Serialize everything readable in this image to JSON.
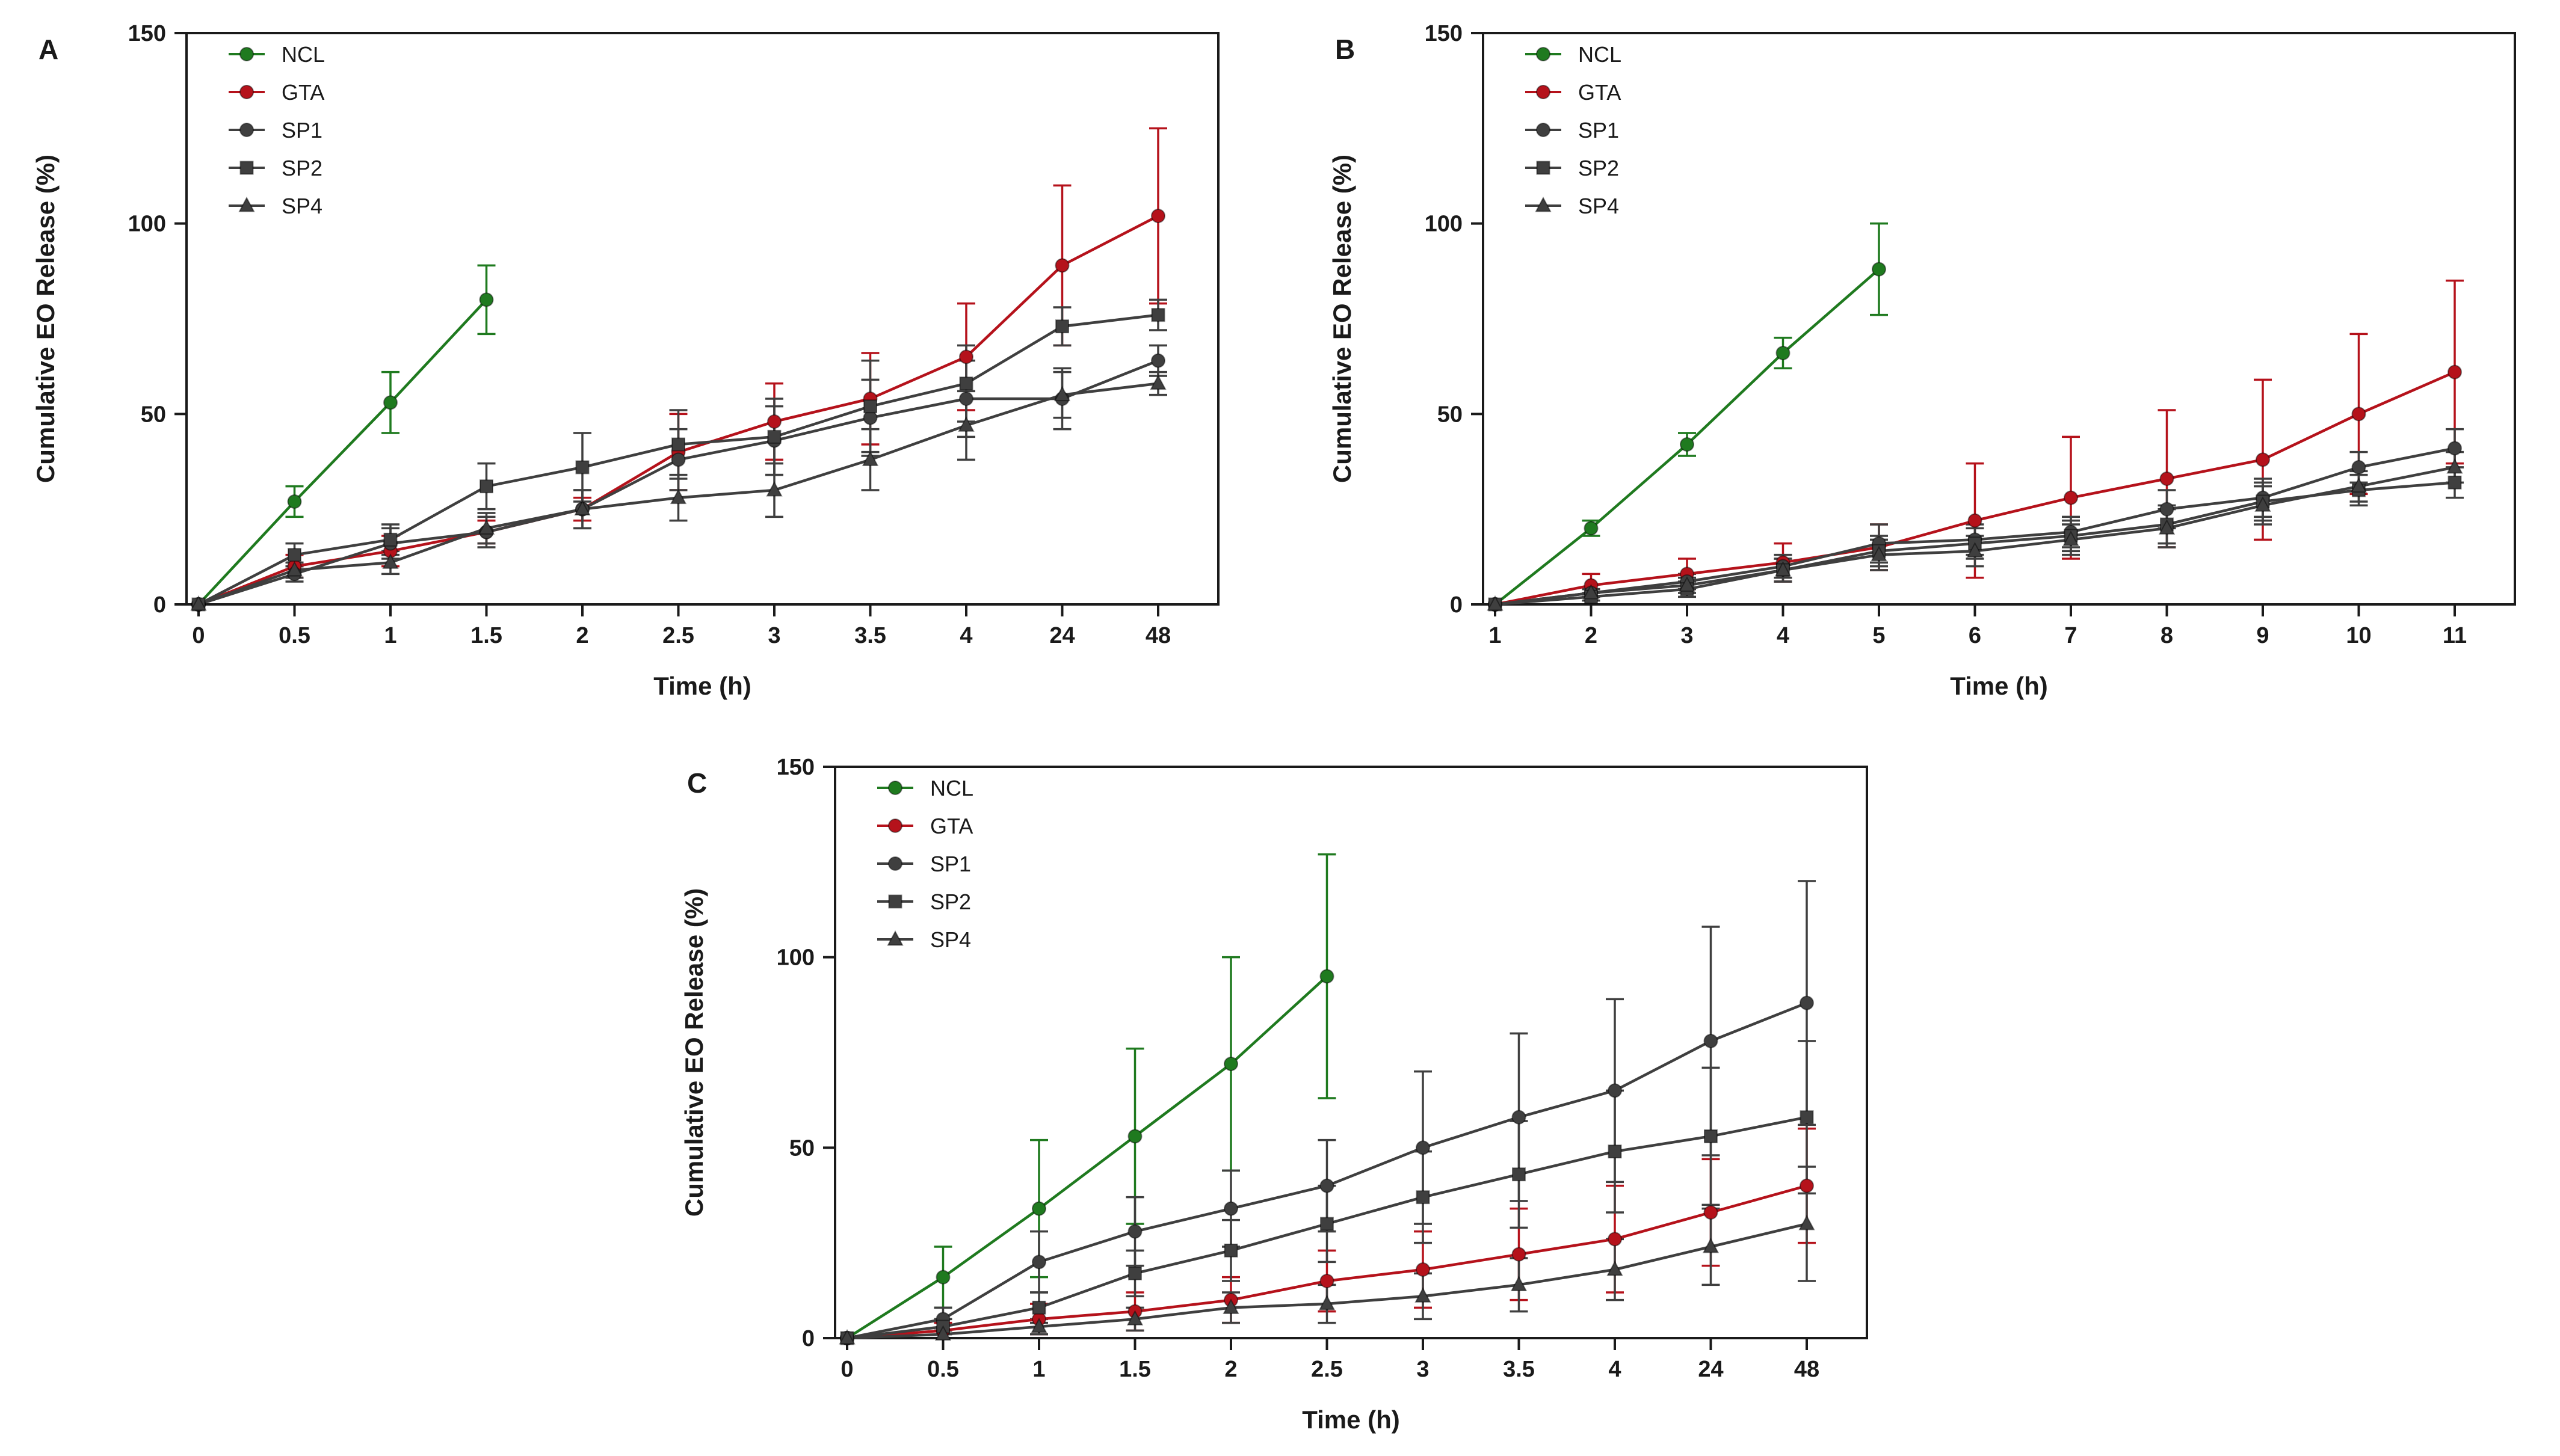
{
  "page": {
    "background": "#ffffff",
    "text_color": "#1a1a1a"
  },
  "legend_order": [
    "NCL",
    "GTA",
    "SP1",
    "SP2",
    "SP4"
  ],
  "colors": {
    "NCL": "#1f7a1f",
    "GTA": "#b5121b",
    "SP1": "#3f3f3f",
    "SP2": "#3f3f3f",
    "SP4": "#3f3f3f"
  },
  "chart_data": [
    {
      "type": "line",
      "panel_label": "A",
      "title": "",
      "xlabel": "Time (h)",
      "ylabel": "Cumulative EO Release (%)",
      "ylim": [
        0,
        150
      ],
      "yticks": [
        0,
        50,
        100,
        150
      ],
      "grid": false,
      "frame": true,
      "legend_position": "top-left-inside",
      "categories": [
        "0",
        "0.5",
        "1",
        "1.5",
        "2",
        "2.5",
        "3",
        "3.5",
        "4",
        "24",
        "48"
      ],
      "series": [
        {
          "name": "NCL",
          "color": "#1f7a1f",
          "marker": "circle",
          "values": [
            0,
            27,
            53,
            80
          ],
          "errors": [
            0,
            4,
            8,
            9
          ]
        },
        {
          "name": "GTA",
          "color": "#b5121b",
          "marker": "circle",
          "values": [
            0,
            10,
            14,
            19,
            25,
            40,
            48,
            54,
            65,
            89,
            102
          ],
          "errors": [
            0,
            3,
            4,
            3,
            3,
            10,
            10,
            12,
            14,
            21,
            23
          ]
        },
        {
          "name": "SP1",
          "color": "#3f3f3f",
          "marker": "circle",
          "values": [
            0,
            8,
            16,
            19,
            25,
            38,
            43,
            49,
            54,
            54,
            64
          ],
          "errors": [
            0,
            2,
            4,
            4,
            5,
            8,
            9,
            10,
            10,
            8,
            4
          ]
        },
        {
          "name": "SP2",
          "color": "#3f3f3f",
          "marker": "square",
          "values": [
            0,
            13,
            17,
            31,
            36,
            42,
            44,
            52,
            58,
            73,
            76
          ],
          "errors": [
            0,
            3,
            4,
            6,
            9,
            9,
            10,
            12,
            10,
            5,
            4
          ]
        },
        {
          "name": "SP4",
          "color": "#3f3f3f",
          "marker": "triangle",
          "values": [
            0,
            9,
            11,
            20,
            25,
            28,
            30,
            38,
            47,
            55,
            58
          ],
          "errors": [
            0,
            2,
            3,
            4,
            5,
            6,
            7,
            8,
            9,
            6,
            3
          ]
        }
      ]
    },
    {
      "type": "line",
      "panel_label": "B",
      "title": "",
      "xlabel": "Time (h)",
      "ylabel": "Cumulative EO Release (%)",
      "ylim": [
        0,
        150
      ],
      "yticks": [
        0,
        50,
        100,
        150
      ],
      "grid": false,
      "frame": true,
      "legend_position": "top-left-inside",
      "categories": [
        "1",
        "2",
        "3",
        "4",
        "5",
        "6",
        "7",
        "8",
        "9",
        "10",
        "11"
      ],
      "series": [
        {
          "name": "NCL",
          "color": "#1f7a1f",
          "marker": "circle",
          "values": [
            0,
            20,
            42,
            66,
            88
          ],
          "errors": [
            0,
            2,
            3,
            4,
            12
          ]
        },
        {
          "name": "GTA",
          "color": "#b5121b",
          "marker": "circle",
          "values": [
            0,
            5,
            8,
            11,
            15,
            22,
            28,
            33,
            38,
            50,
            61
          ],
          "errors": [
            0,
            3,
            4,
            5,
            6,
            15,
            16,
            18,
            21,
            21,
            24
          ]
        },
        {
          "name": "SP1",
          "color": "#3f3f3f",
          "marker": "circle",
          "values": [
            0,
            3,
            6,
            10,
            16,
            17,
            19,
            25,
            28,
            36,
            41
          ],
          "errors": [
            0,
            1,
            2,
            3,
            5,
            4,
            4,
            5,
            5,
            4,
            5
          ]
        },
        {
          "name": "SP2",
          "color": "#3f3f3f",
          "marker": "square",
          "values": [
            0,
            2,
            4,
            9,
            14,
            16,
            18,
            21,
            27,
            30,
            32
          ],
          "errors": [
            0,
            1,
            2,
            3,
            4,
            4,
            4,
            5,
            5,
            4,
            4
          ]
        },
        {
          "name": "SP4",
          "color": "#3f3f3f",
          "marker": "triangle",
          "values": [
            0,
            3,
            5,
            9,
            13,
            14,
            17,
            20,
            26,
            31,
            36
          ],
          "errors": [
            0,
            1,
            2,
            3,
            4,
            4,
            4,
            5,
            5,
            4,
            4
          ]
        }
      ]
    },
    {
      "type": "line",
      "panel_label": "C",
      "title": "",
      "xlabel": "Time (h)",
      "ylabel": "Cumulative EO Release (%)",
      "ylim": [
        0,
        150
      ],
      "yticks": [
        0,
        50,
        100,
        150
      ],
      "grid": false,
      "frame": true,
      "legend_position": "top-left-inside",
      "categories": [
        "0",
        "0.5",
        "1",
        "1.5",
        "2",
        "2.5",
        "3",
        "3.5",
        "4",
        "24",
        "48"
      ],
      "series": [
        {
          "name": "NCL",
          "color": "#1f7a1f",
          "marker": "circle",
          "values": [
            0,
            16,
            34,
            53,
            72,
            95
          ],
          "errors": [
            0,
            8,
            18,
            23,
            28,
            32
          ]
        },
        {
          "name": "GTA",
          "color": "#b5121b",
          "marker": "circle",
          "values": [
            0,
            2,
            5,
            7,
            10,
            15,
            18,
            22,
            26,
            33,
            40
          ],
          "errors": [
            0,
            2,
            4,
            5,
            6,
            8,
            10,
            12,
            14,
            14,
            15
          ]
        },
        {
          "name": "SP1",
          "color": "#3f3f3f",
          "marker": "circle",
          "values": [
            0,
            5,
            20,
            28,
            34,
            40,
            50,
            58,
            65,
            78,
            88
          ],
          "errors": [
            0,
            3,
            8,
            9,
            10,
            12,
            20,
            22,
            24,
            30,
            32
          ]
        },
        {
          "name": "SP2",
          "color": "#3f3f3f",
          "marker": "square",
          "values": [
            0,
            3,
            8,
            17,
            23,
            30,
            37,
            43,
            49,
            53,
            58
          ],
          "errors": [
            0,
            2,
            4,
            6,
            8,
            10,
            12,
            14,
            16,
            18,
            20
          ]
        },
        {
          "name": "SP4",
          "color": "#3f3f3f",
          "marker": "triangle",
          "values": [
            0,
            1,
            3,
            5,
            8,
            9,
            11,
            14,
            18,
            24,
            30
          ],
          "errors": [
            0,
            1,
            2,
            3,
            4,
            5,
            6,
            7,
            8,
            10,
            15
          ]
        }
      ]
    }
  ]
}
